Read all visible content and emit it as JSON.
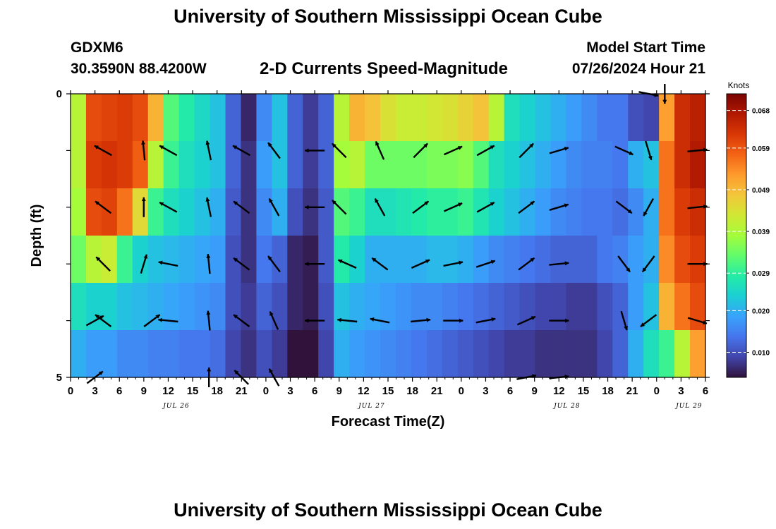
{
  "header": {
    "title": "University of Southern Mississippi Ocean Cube",
    "station_id": "GDXM6",
    "station_coords": "30.3590N  88.4200W",
    "chart_title": "2-D Currents Speed-Magnitude",
    "start_label": "Model Start Time",
    "start_value": "07/26/2024 Hour 21"
  },
  "footer": {
    "title": "University of Southern Mississippi Ocean Cube"
  },
  "chart_data": {
    "type": "heatmap",
    "xlabel": "Forecast Time(Z)",
    "ylabel": "Depth (ft)",
    "x_tick_labels": [
      "0",
      "3",
      "6",
      "9",
      "12",
      "15",
      "18",
      "21",
      "0",
      "3",
      "6",
      "9",
      "12",
      "15",
      "18",
      "21",
      "0",
      "3",
      "6",
      "9",
      "12",
      "15",
      "18",
      "21",
      "0",
      "3",
      "6"
    ],
    "date_labels": [
      {
        "text": "JUL 26",
        "hour_index": 13
      },
      {
        "text": "JUL 27",
        "hour_index": 37
      },
      {
        "text": "JUL 28",
        "hour_index": 61
      },
      {
        "text": "JUL 29",
        "hour_index": 76
      }
    ],
    "y_tick_labels": [
      "0",
      "5"
    ],
    "y_range": [
      0,
      5
    ],
    "x_range_hours": [
      0,
      78
    ],
    "colorbar": {
      "unit": "Knots",
      "tick_labels": [
        "0.068",
        "0.059",
        "0.049",
        "0.039",
        "0.029",
        "0.020",
        "0.010"
      ],
      "tick_values": [
        0.068,
        0.059,
        0.049,
        0.039,
        0.029,
        0.02,
        0.01
      ],
      "range": [
        0.004,
        0.072
      ],
      "colors": [
        "#30123b",
        "#4145ab",
        "#4675ed",
        "#39a2fc",
        "#1bcfd4",
        "#24eca6",
        "#61fc6c",
        "#a4fc3b",
        "#d1e834",
        "#f3c63a",
        "#fe9b2d",
        "#f36315",
        "#d93806",
        "#b11901",
        "#7a0403"
      ]
    },
    "speed_layers": [
      {
        "depth": "0-1",
        "values": [
          0.04,
          0.06,
          0.061,
          0.062,
          0.06,
          0.05,
          0.032,
          0.028,
          0.025,
          0.022,
          0.012,
          0.006,
          0.016,
          0.022,
          0.012,
          0.008,
          0.012,
          0.04,
          0.05,
          0.048,
          0.044,
          0.042,
          0.042,
          0.043,
          0.044,
          0.046,
          0.048,
          0.04,
          0.026,
          0.024,
          0.022,
          0.02,
          0.018,
          0.016,
          0.014,
          0.014,
          0.01,
          0.009,
          0.052,
          0.064,
          0.066
        ]
      },
      {
        "depth": "1-2",
        "values": [
          0.04,
          0.062,
          0.063,
          0.062,
          0.058,
          0.04,
          0.03,
          0.026,
          0.024,
          0.022,
          0.012,
          0.007,
          0.018,
          0.022,
          0.012,
          0.008,
          0.012,
          0.038,
          0.04,
          0.034,
          0.034,
          0.034,
          0.034,
          0.035,
          0.035,
          0.036,
          0.032,
          0.026,
          0.024,
          0.022,
          0.02,
          0.018,
          0.016,
          0.015,
          0.015,
          0.014,
          0.02,
          0.022,
          0.056,
          0.064,
          0.067
        ]
      },
      {
        "depth": "2-3",
        "values": [
          0.038,
          0.06,
          0.061,
          0.056,
          0.045,
          0.03,
          0.026,
          0.024,
          0.022,
          0.02,
          0.011,
          0.007,
          0.016,
          0.02,
          0.01,
          0.007,
          0.011,
          0.032,
          0.03,
          0.026,
          0.026,
          0.027,
          0.028,
          0.029,
          0.029,
          0.03,
          0.027,
          0.024,
          0.022,
          0.02,
          0.018,
          0.016,
          0.015,
          0.014,
          0.014,
          0.013,
          0.016,
          0.02,
          0.056,
          0.062,
          0.064
        ]
      },
      {
        "depth": "3-4",
        "values": [
          0.034,
          0.04,
          0.042,
          0.03,
          0.024,
          0.022,
          0.021,
          0.02,
          0.019,
          0.018,
          0.01,
          0.007,
          0.014,
          0.012,
          0.006,
          0.005,
          0.011,
          0.028,
          0.024,
          0.02,
          0.02,
          0.02,
          0.02,
          0.021,
          0.021,
          0.02,
          0.018,
          0.016,
          0.015,
          0.014,
          0.013,
          0.012,
          0.012,
          0.012,
          0.014,
          0.015,
          0.018,
          0.02,
          0.054,
          0.06,
          0.062
        ]
      },
      {
        "depth": "4-5",
        "values": [
          0.026,
          0.024,
          0.024,
          0.022,
          0.021,
          0.02,
          0.019,
          0.018,
          0.017,
          0.016,
          0.01,
          0.008,
          0.012,
          0.01,
          0.006,
          0.005,
          0.01,
          0.022,
          0.02,
          0.019,
          0.018,
          0.017,
          0.016,
          0.016,
          0.015,
          0.014,
          0.013,
          0.012,
          0.011,
          0.01,
          0.009,
          0.009,
          0.008,
          0.008,
          0.01,
          0.012,
          0.018,
          0.022,
          0.05,
          0.056,
          0.06
        ]
      },
      {
        "depth": "5",
        "values": [
          0.02,
          0.018,
          0.018,
          0.016,
          0.016,
          0.015,
          0.015,
          0.014,
          0.014,
          0.013,
          0.009,
          0.007,
          0.01,
          0.008,
          0.004,
          0.004,
          0.009,
          0.02,
          0.018,
          0.017,
          0.016,
          0.015,
          0.014,
          0.013,
          0.012,
          0.011,
          0.01,
          0.009,
          0.008,
          0.008,
          0.007,
          0.007,
          0.007,
          0.007,
          0.009,
          0.012,
          0.02,
          0.026,
          0.03,
          0.04,
          0.052
        ]
      }
    ],
    "vector_rows": [
      {
        "depth_index": 0,
        "vectors": [
          {
            "hour": 71,
            "dx": 1.0,
            "dy": 0.2
          },
          {
            "hour": 73,
            "dx": 0.0,
            "dy": 1.0
          }
        ]
      },
      {
        "depth_index": 1,
        "vectors": [
          {
            "hour": 4,
            "dx": -0.9,
            "dy": -0.5
          },
          {
            "hour": 9,
            "dx": -0.1,
            "dy": -1.0
          },
          {
            "hour": 12,
            "dx": -0.9,
            "dy": -0.5
          },
          {
            "hour": 17,
            "dx": -0.2,
            "dy": -1.0
          },
          {
            "hour": 21,
            "dx": -0.9,
            "dy": -0.5
          },
          {
            "hour": 25,
            "dx": -0.6,
            "dy": -0.8
          },
          {
            "hour": 30,
            "dx": -1.0,
            "dy": 0.0
          },
          {
            "hour": 33,
            "dx": -0.7,
            "dy": -0.7
          },
          {
            "hour": 38,
            "dx": -0.4,
            "dy": -0.9
          },
          {
            "hour": 43,
            "dx": 0.7,
            "dy": -0.7
          },
          {
            "hour": 47,
            "dx": 0.9,
            "dy": -0.4
          },
          {
            "hour": 51,
            "dx": 0.9,
            "dy": -0.5
          },
          {
            "hour": 56,
            "dx": 0.7,
            "dy": -0.7
          },
          {
            "hour": 60,
            "dx": 1.0,
            "dy": -0.3
          },
          {
            "hour": 68,
            "dx": 0.9,
            "dy": 0.4
          },
          {
            "hour": 71,
            "dx": 0.3,
            "dy": 1.0
          },
          {
            "hour": 77,
            "dx": 1.0,
            "dy": -0.1
          }
        ]
      },
      {
        "depth_index": 2,
        "vectors": [
          {
            "hour": 4,
            "dx": -0.8,
            "dy": -0.6
          },
          {
            "hour": 9,
            "dx": 0.0,
            "dy": -1.0
          },
          {
            "hour": 12,
            "dx": -0.9,
            "dy": -0.5
          },
          {
            "hour": 17,
            "dx": -0.2,
            "dy": -1.0
          },
          {
            "hour": 21,
            "dx": -0.8,
            "dy": -0.6
          },
          {
            "hour": 25,
            "dx": -0.5,
            "dy": -0.9
          },
          {
            "hour": 30,
            "dx": -1.0,
            "dy": 0.0
          },
          {
            "hour": 33,
            "dx": -0.7,
            "dy": -0.7
          },
          {
            "hour": 38,
            "dx": -0.5,
            "dy": -0.9
          },
          {
            "hour": 43,
            "dx": 0.8,
            "dy": -0.6
          },
          {
            "hour": 47,
            "dx": 0.9,
            "dy": -0.4
          },
          {
            "hour": 51,
            "dx": 0.9,
            "dy": -0.5
          },
          {
            "hour": 56,
            "dx": 0.8,
            "dy": -0.6
          },
          {
            "hour": 60,
            "dx": 1.0,
            "dy": -0.3
          },
          {
            "hour": 68,
            "dx": 0.8,
            "dy": 0.6
          },
          {
            "hour": 71,
            "dx": -0.5,
            "dy": 0.9
          },
          {
            "hour": 77,
            "dx": 1.0,
            "dy": -0.1
          }
        ]
      },
      {
        "depth_index": 3,
        "vectors": [
          {
            "hour": 4,
            "dx": -0.7,
            "dy": -0.7
          },
          {
            "hour": 9,
            "dx": 0.3,
            "dy": -1.0
          },
          {
            "hour": 12,
            "dx": -1.0,
            "dy": -0.2
          },
          {
            "hour": 17,
            "dx": -0.1,
            "dy": -1.0
          },
          {
            "hour": 21,
            "dx": -0.8,
            "dy": -0.6
          },
          {
            "hour": 25,
            "dx": -0.6,
            "dy": -0.8
          },
          {
            "hour": 30,
            "dx": -1.0,
            "dy": 0.0
          },
          {
            "hour": 34,
            "dx": -0.9,
            "dy": -0.4
          },
          {
            "hour": 38,
            "dx": -0.8,
            "dy": -0.6
          },
          {
            "hour": 43,
            "dx": 0.9,
            "dy": -0.4
          },
          {
            "hour": 47,
            "dx": 1.0,
            "dy": -0.2
          },
          {
            "hour": 51,
            "dx": 0.9,
            "dy": -0.3
          },
          {
            "hour": 56,
            "dx": 0.8,
            "dy": -0.6
          },
          {
            "hour": 60,
            "dx": 1.0,
            "dy": -0.1
          },
          {
            "hour": 68,
            "dx": 0.6,
            "dy": 0.8
          },
          {
            "hour": 71,
            "dx": -0.6,
            "dy": 0.8
          },
          {
            "hour": 77,
            "dx": 1.0,
            "dy": 0.0
          }
        ]
      },
      {
        "depth_index": 4,
        "vectors": [
          {
            "hour": 3,
            "dx": 0.9,
            "dy": -0.5
          },
          {
            "hour": 4,
            "dx": -0.8,
            "dy": -0.6
          },
          {
            "hour": 10,
            "dx": 0.8,
            "dy": -0.6
          },
          {
            "hour": 12,
            "dx": -1.0,
            "dy": -0.1
          },
          {
            "hour": 17,
            "dx": -0.1,
            "dy": -1.0
          },
          {
            "hour": 21,
            "dx": -0.8,
            "dy": -0.6
          },
          {
            "hour": 25,
            "dx": -0.4,
            "dy": -0.9
          },
          {
            "hour": 30,
            "dx": -1.0,
            "dy": 0.0
          },
          {
            "hour": 34,
            "dx": -1.0,
            "dy": -0.1
          },
          {
            "hour": 38,
            "dx": -1.0,
            "dy": -0.2
          },
          {
            "hour": 43,
            "dx": 1.0,
            "dy": -0.1
          },
          {
            "hour": 47,
            "dx": 1.0,
            "dy": 0.0
          },
          {
            "hour": 51,
            "dx": 1.0,
            "dy": -0.2
          },
          {
            "hour": 56,
            "dx": 0.9,
            "dy": -0.4
          },
          {
            "hour": 60,
            "dx": 1.0,
            "dy": 0.0
          },
          {
            "hour": 68,
            "dx": 0.3,
            "dy": 1.0
          },
          {
            "hour": 71,
            "dx": -0.8,
            "dy": 0.6
          },
          {
            "hour": 77,
            "dx": 1.0,
            "dy": 0.3
          }
        ]
      },
      {
        "depth_index": 5,
        "vectors": [
          {
            "hour": 3,
            "dx": 0.8,
            "dy": -0.6
          },
          {
            "hour": 17,
            "dx": 0.0,
            "dy": -1.0
          },
          {
            "hour": 21,
            "dx": -0.7,
            "dy": -0.7
          },
          {
            "hour": 25,
            "dx": -0.5,
            "dy": -0.9
          },
          {
            "hour": 56,
            "dx": 1.0,
            "dy": -0.2
          },
          {
            "hour": 60,
            "dx": 1.0,
            "dy": -0.1
          }
        ]
      }
    ]
  }
}
